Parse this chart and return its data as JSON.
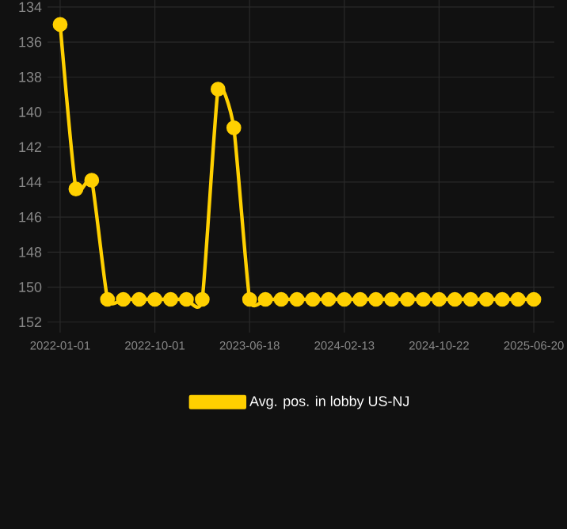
{
  "chart_data": {
    "type": "line",
    "categories": [
      "2022-01-01",
      null,
      null,
      null,
      null,
      null,
      "2022-10-01",
      null,
      null,
      null,
      null,
      null,
      "2023-06-18",
      null,
      null,
      null,
      null,
      null,
      "2024-02-13",
      null,
      null,
      null,
      null,
      null,
      "2024-10-22",
      null,
      null,
      null,
      null,
      null,
      "2025-06-20"
    ],
    "series": [
      {
        "name": "Avg. pos. in lobby US-NJ",
        "color": "#ffd000",
        "values": [
          135,
          144.4,
          143.9,
          150.7,
          150.7,
          150.7,
          150.7,
          150.7,
          150.7,
          150.7,
          138.7,
          140.9,
          150.7,
          150.7,
          150.7,
          150.7,
          150.7,
          150.7,
          150.7,
          150.7,
          150.7,
          150.7,
          150.7,
          150.7,
          150.7,
          150.7,
          150.7,
          150.7,
          150.7,
          150.7,
          150.7
        ]
      }
    ],
    "ylim": [
      152.6,
      133.6
    ],
    "yticks": [
      134,
      136,
      138,
      140,
      142,
      144,
      146,
      148,
      150,
      152
    ],
    "grid": true,
    "legend": "bottom",
    "marker": "circle",
    "line_style": "solid"
  }
}
